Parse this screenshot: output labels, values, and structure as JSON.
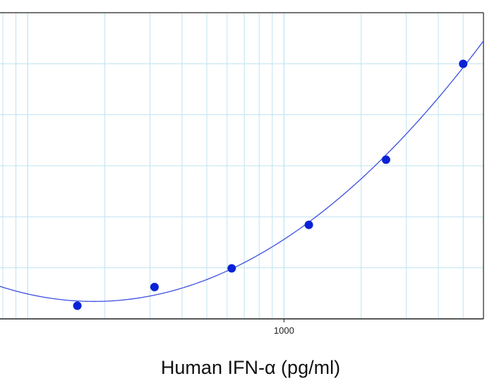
{
  "chart_data": {
    "type": "scatter",
    "title": "",
    "xlabel": "Human IFN-α (pg/ml)",
    "ylabel": "",
    "x_scale": "log",
    "xlim": [
      78,
      6000
    ],
    "ylim": [
      0,
      1
    ],
    "grid": true,
    "x_tick_labels": [
      {
        "value": 1000,
        "label": "1000"
      }
    ],
    "series": [
      {
        "points": [
          {
            "x": 156.25,
            "y": 0.043
          },
          {
            "x": 312.5,
            "y": 0.104
          },
          {
            "x": 625,
            "y": 0.165
          },
          {
            "x": 1250,
            "y": 0.307
          },
          {
            "x": 2500,
            "y": 0.52
          },
          {
            "x": 5000,
            "y": 0.833
          }
        ]
      }
    ]
  },
  "colors": {
    "grid": "#bfe3f2",
    "axis": "#222222",
    "curve": "#3b4fe0",
    "points": "#0a22d6"
  }
}
